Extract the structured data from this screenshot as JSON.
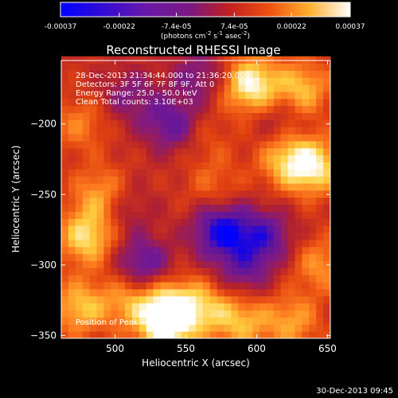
{
  "chart_data": {
    "type": "heatmap",
    "title": "Reconstructed RHESSI Image",
    "xlabel": "Heliocentric X (arcsec)",
    "ylabel": "Heliocentric Y (arcsec)",
    "xlim": [
      462,
      652
    ],
    "ylim": [
      -352,
      -155
    ],
    "x_ticks": [
      500,
      550,
      600,
      650
    ],
    "y_ticks": [
      -200,
      -250,
      -300,
      -350
    ],
    "colorbar": {
      "ticks": [
        "-0.00037",
        "-0.00022",
        "-7.4e-05",
        "7.4e-05",
        "0.00022",
        "0.00037"
      ],
      "tick_values": [
        -0.00037,
        -0.00022,
        -7.4e-05,
        7.4e-05,
        0.00022,
        0.00037
      ],
      "range": [
        -0.00037,
        0.00037
      ],
      "units_prefix": "(photons cm",
      "units_exp1": "-2",
      "units_mid": " s",
      "units_exp2": "-1",
      "units_mid2": " asec",
      "units_exp3": "-2",
      "units_suffix": ")"
    },
    "colormap": [
      "#0000ff",
      "#5a14a0",
      "#7a1a8c",
      "#b02030",
      "#e04010",
      "#ff8020",
      "#ffd040",
      "#ffffff"
    ],
    "info_lines": [
      "28-Dec-2013 21:34:44.000 to 21:36:20.000",
      "Detectors: 3F 5F 6F 7F 8F 9F, Att 0",
      "Energy Range: 25.0 - 50.0 keV",
      "Clean    Total counts: 3.10E+03"
    ],
    "peak_label": "Position of Peak = [596,-172]",
    "peak": [
      596,
      -172
    ],
    "features": [
      {
        "x": 490,
        "y": -250,
        "v": 0.00022
      },
      {
        "x": 480,
        "y": -280,
        "v": 0.0003
      },
      {
        "x": 475,
        "y": -330,
        "v": 0.00025
      },
      {
        "x": 510,
        "y": -325,
        "v": 0.0002
      },
      {
        "x": 540,
        "y": -330,
        "v": 0.00032
      },
      {
        "x": 535,
        "y": -345,
        "v": 0.00028
      },
      {
        "x": 565,
        "y": -330,
        "v": 0.0002
      },
      {
        "x": 590,
        "y": -340,
        "v": 0.00022
      },
      {
        "x": 632,
        "y": -175,
        "v": 0.00025
      },
      {
        "x": 640,
        "y": -230,
        "v": 0.00032
      },
      {
        "x": 620,
        "y": -225,
        "v": 0.00022
      },
      {
        "x": 625,
        "y": -340,
        "v": 0.0002
      },
      {
        "x": 645,
        "y": -300,
        "v": 0.00018
      },
      {
        "x": 570,
        "y": -245,
        "v": 0.00012
      },
      {
        "x": 565,
        "y": -210,
        "v": 8e-05
      },
      {
        "x": 596,
        "y": -172,
        "v": 0.00037
      },
      {
        "x": 475,
        "y": -200,
        "v": 0.00015
      },
      {
        "x": 575,
        "y": -275,
        "v": -0.00035
      },
      {
        "x": 605,
        "y": -280,
        "v": -0.00025
      },
      {
        "x": 540,
        "y": -200,
        "v": -0.00022
      },
      {
        "x": 520,
        "y": -300,
        "v": -0.00024
      },
      {
        "x": 590,
        "y": -305,
        "v": -0.00018
      },
      {
        "x": 560,
        "y": -165,
        "v": -0.00016
      },
      {
        "x": 510,
        "y": -180,
        "v": -0.00014
      },
      {
        "x": 505,
        "y": -260,
        "v": -0.00012
      },
      {
        "x": 615,
        "y": -195,
        "v": -0.0001
      }
    ]
  },
  "timestamp": "30-Dec-2013 09:45"
}
